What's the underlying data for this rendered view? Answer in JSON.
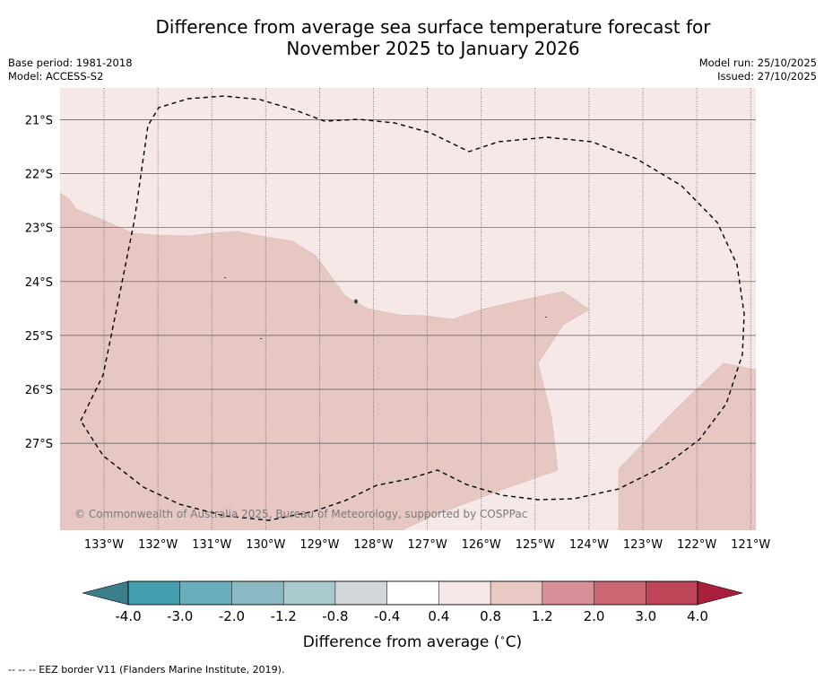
{
  "title_line1": "Difference from average sea surface temperature forecast for",
  "title_line2": "November 2025 to January 2026",
  "base_period": "Base period: 1981-2018",
  "model": "Model: ACCESS-S2",
  "model_run": "Model run: 25/10/2025",
  "issued": "Issued: 27/10/2025",
  "copyright": "© Commonwealth of Australia 2025, Bureau of Meteorology, supported by COSPPac",
  "lat_labels": [
    "21°S",
    "22°S",
    "23°S",
    "24°S",
    "25°S",
    "26°S",
    "27°S"
  ],
  "lon_labels": [
    "133°W",
    "132°W",
    "131°W",
    "130°W",
    "129°W",
    "128°W",
    "127°W",
    "126°W",
    "125°W",
    "124°W",
    "123°W",
    "122°W",
    "121°W"
  ],
  "colorbar": {
    "ticks": [
      "-4.0",
      "-3.0",
      "-2.0",
      "-1.2",
      "-0.8",
      "-0.4",
      "0.4",
      "0.8",
      "1.2",
      "2.0",
      "3.0",
      "4.0"
    ],
    "colors": [
      "#439fb0",
      "#6aaebb",
      "#8ab9c4",
      "#a9c9ce",
      "#d3d6d9",
      "#ffffff",
      "#f5e8e7",
      "#e9c9c4",
      "#d88f97",
      "#cb6772",
      "#bf4558"
    ],
    "under_color": "#3b7f8a",
    "over_color": "#a8203c",
    "label": "Difference from average (",
    "label_unit": "C)",
    "label_degree": "∘"
  },
  "map_colors": {
    "light": "#f5e8e7",
    "medium": "#e6c7c2"
  },
  "footer": "--  --  -- EEZ border V11 (Flanders Marine Institute, 2019)."
}
